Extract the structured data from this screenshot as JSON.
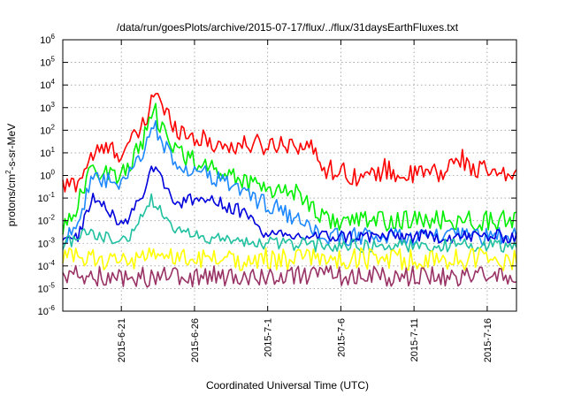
{
  "chart_data": {
    "type": "line",
    "title": "/data/run/goesPlots/archive/2015-07-17/flux/../flux/31daysEarthFluxes.txt",
    "xlabel": "Coordinated Universal Time (UTC)",
    "ylabel": {
      "base": "protons/cm",
      "sup": "2",
      "rest": "-s-sr-MeV"
    },
    "yscale": "log",
    "ylim": [
      1e-06,
      1000000.0
    ],
    "xlim": [
      "2015-06-17",
      "2015-07-18"
    ],
    "grid": true,
    "yticks": [
      {
        "value": 1e-06,
        "base": "10",
        "exp": "-6"
      },
      {
        "value": 1e-05,
        "base": "10",
        "exp": "-5"
      },
      {
        "value": 0.0001,
        "base": "10",
        "exp": "-4"
      },
      {
        "value": 0.001,
        "base": "10",
        "exp": "-3"
      },
      {
        "value": 0.01,
        "base": "10",
        "exp": "-2"
      },
      {
        "value": 0.1,
        "base": "10",
        "exp": "-1"
      },
      {
        "value": 1,
        "base": "10",
        "exp": "0"
      },
      {
        "value": 10,
        "base": "10",
        "exp": "1"
      },
      {
        "value": 100,
        "base": "10",
        "exp": "2"
      },
      {
        "value": 1000,
        "base": "10",
        "exp": "3"
      },
      {
        "value": 10000,
        "base": "10",
        "exp": "4"
      },
      {
        "value": 100000,
        "base": "10",
        "exp": "5"
      },
      {
        "value": 1000000,
        "base": "10",
        "exp": "6"
      }
    ],
    "xticks": [
      {
        "date": "2015-06-21",
        "label": "2015-6-21"
      },
      {
        "date": "2015-06-26",
        "label": "2015-6-26"
      },
      {
        "date": "2015-07-01",
        "label": "2015-7-1"
      },
      {
        "date": "2015-07-06",
        "label": "2015-7-6"
      },
      {
        "date": "2015-07-11",
        "label": "2015-7-11"
      },
      {
        "date": "2015-07-16",
        "label": "2015-7-16"
      }
    ],
    "series": [
      {
        "color": "#ff0000",
        "noise": 0.45,
        "points": [
          [
            "2015-06-17",
            0.3
          ],
          [
            "2015-06-18",
            0.5
          ],
          [
            "2015-06-19",
            8
          ],
          [
            "2015-06-20",
            15
          ],
          [
            "2015-06-21",
            10
          ],
          [
            "2015-06-22",
            50
          ],
          [
            "2015-06-22T18:00",
            300
          ],
          [
            "2015-06-23",
            2000
          ],
          [
            "2015-06-23T08:00",
            8000
          ],
          [
            "2015-06-23T18:00",
            800
          ],
          [
            "2015-06-24",
            600
          ],
          [
            "2015-06-25",
            100
          ],
          [
            "2015-06-26",
            50
          ],
          [
            "2015-06-27",
            30
          ],
          [
            "2015-06-28",
            20
          ],
          [
            "2015-06-29",
            20
          ],
          [
            "2015-06-30",
            25
          ],
          [
            "2015-07-01",
            20
          ],
          [
            "2015-07-02",
            30
          ],
          [
            "2015-07-03",
            25
          ],
          [
            "2015-07-04",
            15
          ],
          [
            "2015-07-05",
            2
          ],
          [
            "2015-07-06",
            1.5
          ],
          [
            "2015-07-07",
            1
          ],
          [
            "2015-07-08",
            0.8
          ],
          [
            "2015-07-09",
            2
          ],
          [
            "2015-07-10",
            1
          ],
          [
            "2015-07-11",
            1
          ],
          [
            "2015-07-12",
            1.5
          ],
          [
            "2015-07-13",
            1
          ],
          [
            "2015-07-14",
            8
          ],
          [
            "2015-07-15",
            2
          ],
          [
            "2015-07-16",
            1.5
          ],
          [
            "2015-07-17",
            0.8
          ],
          [
            "2015-07-18",
            1.2
          ]
        ]
      },
      {
        "color": "#00ee00",
        "noise": 0.45,
        "points": [
          [
            "2015-06-17",
            0.005
          ],
          [
            "2015-06-18",
            0.05
          ],
          [
            "2015-06-19",
            2
          ],
          [
            "2015-06-20",
            1.5
          ],
          [
            "2015-06-21",
            0.8
          ],
          [
            "2015-06-22",
            10
          ],
          [
            "2015-06-22T18:00",
            80
          ],
          [
            "2015-06-23",
            300
          ],
          [
            "2015-06-23T08:00",
            600
          ],
          [
            "2015-06-23T18:00",
            100
          ],
          [
            "2015-06-24",
            50
          ],
          [
            "2015-06-25",
            10
          ],
          [
            "2015-06-26",
            5
          ],
          [
            "2015-06-27",
            2
          ],
          [
            "2015-06-28",
            1.5
          ],
          [
            "2015-06-29",
            0.7
          ],
          [
            "2015-06-30",
            0.5
          ],
          [
            "2015-07-01",
            0.3
          ],
          [
            "2015-07-02",
            0.2
          ],
          [
            "2015-07-03",
            0.2
          ],
          [
            "2015-07-04",
            0.05
          ],
          [
            "2015-07-05",
            0.01
          ],
          [
            "2015-07-08",
            0.01
          ],
          [
            "2015-07-12",
            0.01
          ],
          [
            "2015-07-16",
            0.01
          ],
          [
            "2015-07-18",
            0.01
          ]
        ]
      },
      {
        "color": "#1e88ff",
        "noise": 0.4,
        "points": [
          [
            "2015-06-17",
            0.001
          ],
          [
            "2015-06-18",
            0.01
          ],
          [
            "2015-06-19",
            0.5
          ],
          [
            "2015-06-20",
            0.6
          ],
          [
            "2015-06-21",
            0.3
          ],
          [
            "2015-06-22",
            3
          ],
          [
            "2015-06-22T18:00",
            30
          ],
          [
            "2015-06-23",
            60
          ],
          [
            "2015-06-23T08:00",
            150
          ],
          [
            "2015-06-23T18:00",
            30
          ],
          [
            "2015-06-24",
            15
          ],
          [
            "2015-06-25",
            3
          ],
          [
            "2015-06-26",
            1.5
          ],
          [
            "2015-06-27",
            1
          ],
          [
            "2015-06-28",
            0.5
          ],
          [
            "2015-06-29",
            0.3
          ],
          [
            "2015-06-30",
            0.1
          ],
          [
            "2015-07-01",
            0.05
          ],
          [
            "2015-07-02",
            0.03
          ],
          [
            "2015-07-03",
            0.01
          ],
          [
            "2015-07-04",
            0.003
          ],
          [
            "2015-07-05",
            0.002
          ],
          [
            "2015-07-10",
            0.002
          ],
          [
            "2015-07-15",
            0.002
          ],
          [
            "2015-07-18",
            0.002
          ]
        ]
      },
      {
        "color": "#0000dd",
        "noise": 0.3,
        "points": [
          [
            "2015-06-17",
            0.001
          ],
          [
            "2015-06-18",
            0.002
          ],
          [
            "2015-06-19",
            0.1
          ],
          [
            "2015-06-20",
            0.05
          ],
          [
            "2015-06-21",
            0.005
          ],
          [
            "2015-06-22",
            0.05
          ],
          [
            "2015-06-22T18:00",
            0.3
          ],
          [
            "2015-06-23",
            2
          ],
          [
            "2015-06-23T08:00",
            3
          ],
          [
            "2015-06-23T18:00",
            1
          ],
          [
            "2015-06-24",
            0.3
          ],
          [
            "2015-06-25",
            0.05
          ],
          [
            "2015-06-26",
            0.1
          ],
          [
            "2015-06-27",
            0.08
          ],
          [
            "2015-06-28",
            0.05
          ],
          [
            "2015-06-29",
            0.03
          ],
          [
            "2015-06-30",
            0.01
          ],
          [
            "2015-07-01",
            0.002
          ],
          [
            "2015-07-05",
            0.002
          ],
          [
            "2015-07-10",
            0.002
          ],
          [
            "2015-07-15",
            0.002
          ],
          [
            "2015-07-18",
            0.002
          ]
        ]
      },
      {
        "color": "#20c0a0",
        "noise": 0.3,
        "points": [
          [
            "2015-06-17",
            0.001
          ],
          [
            "2015-06-19",
            0.003
          ],
          [
            "2015-06-21",
            0.001
          ],
          [
            "2015-06-22",
            0.005
          ],
          [
            "2015-06-23",
            0.1
          ],
          [
            "2015-06-23T12:00",
            0.03
          ],
          [
            "2015-06-24",
            0.02
          ],
          [
            "2015-06-25",
            0.003
          ],
          [
            "2015-06-26",
            0.002
          ],
          [
            "2015-06-30",
            0.001
          ],
          [
            "2015-07-02",
            0.001
          ],
          [
            "2015-07-05",
            0.0008
          ],
          [
            "2015-07-10",
            0.0008
          ],
          [
            "2015-07-15",
            0.0008
          ],
          [
            "2015-07-18",
            0.0008
          ]
        ]
      },
      {
        "color": "#ffff00",
        "noise": 0.5,
        "points": [
          [
            "2015-06-17",
            0.0002
          ],
          [
            "2015-07-18",
            0.0002
          ]
        ]
      },
      {
        "color": "#993366",
        "noise": 0.45,
        "points": [
          [
            "2015-06-17",
            4e-05
          ],
          [
            "2015-06-23",
            3e-05
          ],
          [
            "2015-07-01",
            4e-05
          ],
          [
            "2015-07-18",
            3e-05
          ]
        ]
      }
    ]
  }
}
